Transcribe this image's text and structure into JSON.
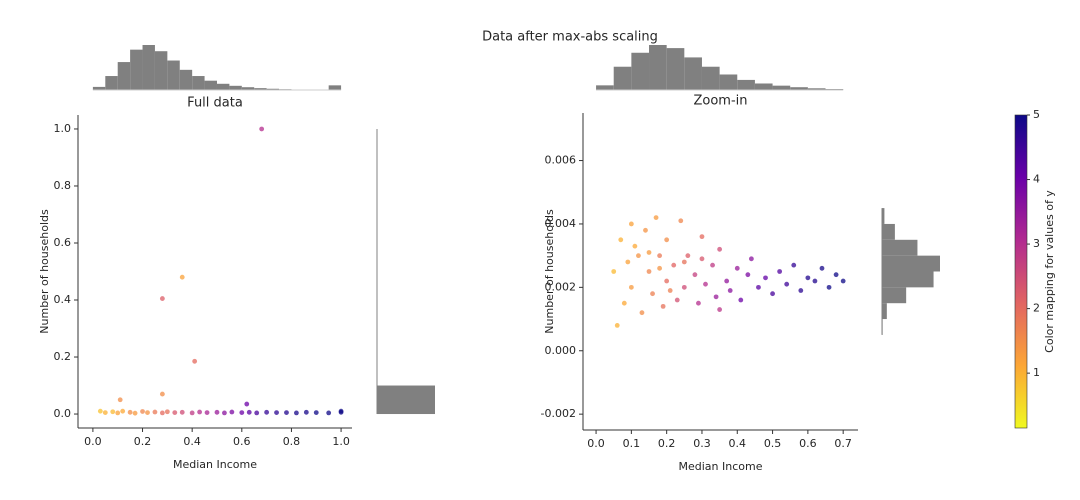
{
  "title": "Data after max-abs scaling",
  "chart_data": [
    {
      "type": "scatter",
      "title": "Full data",
      "x_label": "Median Income",
      "y_label": "Number of households",
      "xlim": [
        -0.06,
        1.044
      ],
      "ylim": [
        -0.049,
        1.049
      ],
      "xticks": [
        {
          "value": 0,
          "label": "0.0"
        },
        0.2,
        0.4,
        0.6,
        0.8,
        {
          "value": 1,
          "label": "1.0"
        }
      ],
      "yticks": [
        {
          "value": 0,
          "label": "0.0"
        },
        0.2,
        0.4,
        0.6,
        0.8,
        {
          "value": 1,
          "label": "1.0"
        }
      ],
      "x": [
        0.03,
        0.05,
        0.08,
        0.1,
        0.12,
        0.15,
        0.17,
        0.2,
        0.22,
        0.25,
        0.28,
        0.3,
        0.33,
        0.36,
        0.4,
        0.43,
        0.46,
        0.5,
        0.53,
        0.56,
        0.6,
        0.63,
        0.66,
        0.7,
        0.74,
        0.78,
        0.82,
        0.86,
        0.9,
        0.95,
        1.0,
        1.0,
        0.68,
        0.36,
        0.28,
        0.41,
        0.62,
        0.11,
        0.28
      ],
      "y": [
        0.01,
        0.005,
        0.008,
        0.004,
        0.01,
        0.006,
        0.003,
        0.009,
        0.005,
        0.007,
        0.004,
        0.008,
        0.005,
        0.006,
        0.004,
        0.007,
        0.005,
        0.006,
        0.004,
        0.007,
        0.005,
        0.006,
        0.004,
        0.006,
        0.005,
        0.005,
        0.004,
        0.006,
        0.005,
        0.004,
        0.006,
        0.01,
        1.0,
        0.48,
        0.405,
        0.185,
        0.035,
        0.05,
        0.07
      ],
      "c": [
        0.8,
        1.0,
        0.9,
        1.2,
        1.1,
        1.5,
        1.3,
        1.6,
        1.4,
        1.8,
        2.0,
        1.9,
        2.3,
        2.5,
        2.8,
        3.0,
        3.2,
        3.4,
        3.6,
        3.8,
        4.0,
        4.2,
        4.4,
        4.6,
        4.7,
        4.8,
        4.9,
        4.9,
        5.0,
        5.0,
        5.0,
        5.0,
        3.0,
        1.2,
        2.2,
        2.0,
        4.0,
        1.5,
        1.5
      ]
    },
    {
      "type": "histogram",
      "orientation": "vertical",
      "color": "#808080",
      "bins": [
        0,
        0.05,
        0.1,
        0.15,
        0.2,
        0.25,
        0.3,
        0.35,
        0.4,
        0.45,
        0.5,
        0.55,
        0.6,
        0.65,
        0.7,
        0.75,
        0.8,
        0.85,
        0.9,
        0.95,
        1.0
      ],
      "counts": [
        200,
        900,
        1800,
        2600,
        2900,
        2500,
        1900,
        1300,
        900,
        600,
        400,
        270,
        180,
        120,
        80,
        50,
        30,
        20,
        10,
        300
      ]
    },
    {
      "type": "histogram",
      "orientation": "horizontal",
      "color": "#808080",
      "bins": [
        0,
        0.1,
        0.2,
        0.3,
        0.4,
        0.5,
        0.6,
        0.7,
        0.8,
        0.9,
        1.0
      ],
      "counts": [
        20600,
        3,
        1,
        0,
        1,
        1,
        0,
        0,
        0,
        1
      ]
    },
    {
      "type": "scatter",
      "title": "Zoom-in",
      "x_label": "Median Income",
      "y_label": "Number of households",
      "xlim": [
        -0.037,
        0.742
      ],
      "ylim": [
        -0.0025,
        0.0075
      ],
      "xticks": [
        {
          "value": 0,
          "label": "0.0"
        },
        0.1,
        0.2,
        0.3,
        0.4,
        0.5,
        0.6,
        0.7
      ],
      "yticks": [
        -0.002,
        {
          "value": 0,
          "label": "0.000"
        },
        0.002,
        0.004,
        0.006
      ],
      "x": [
        0.05,
        0.07,
        0.08,
        0.1,
        0.1,
        0.12,
        0.13,
        0.14,
        0.15,
        0.16,
        0.17,
        0.18,
        0.19,
        0.2,
        0.2,
        0.22,
        0.23,
        0.24,
        0.25,
        0.26,
        0.28,
        0.29,
        0.3,
        0.31,
        0.33,
        0.34,
        0.35,
        0.37,
        0.38,
        0.4,
        0.41,
        0.43,
        0.44,
        0.46,
        0.48,
        0.5,
        0.52,
        0.54,
        0.56,
        0.58,
        0.6,
        0.62,
        0.64,
        0.66,
        0.68,
        0.7,
        0.06,
        0.09,
        0.11,
        0.15,
        0.18,
        0.21,
        0.25,
        0.3,
        0.35
      ],
      "y": [
        0.0025,
        0.0035,
        0.0015,
        0.004,
        0.002,
        0.003,
        0.0012,
        0.0038,
        0.0025,
        0.0018,
        0.0042,
        0.003,
        0.0014,
        0.0022,
        0.0035,
        0.0027,
        0.0016,
        0.0041,
        0.002,
        0.003,
        0.0024,
        0.0015,
        0.0036,
        0.0021,
        0.0027,
        0.0017,
        0.0032,
        0.0022,
        0.0019,
        0.0026,
        0.0016,
        0.0024,
        0.0029,
        0.002,
        0.0023,
        0.0018,
        0.0025,
        0.0021,
        0.0027,
        0.0019,
        0.0023,
        0.0022,
        0.0026,
        0.002,
        0.0024,
        0.0022,
        0.0008,
        0.0028,
        0.0033,
        0.0031,
        0.0026,
        0.0019,
        0.0028,
        0.0029,
        0.0013
      ],
      "c": [
        0.9,
        1.0,
        1.1,
        1.2,
        1.3,
        1.4,
        1.5,
        1.4,
        1.6,
        1.7,
        1.3,
        1.8,
        1.9,
        2.0,
        1.5,
        2.1,
        2.4,
        1.6,
        2.5,
        2.2,
        2.7,
        3.0,
        2.0,
        3.0,
        2.8,
        3.4,
        2.5,
        3.5,
        3.6,
        3.4,
        4.0,
        3.8,
        3.6,
        4.2,
        4.1,
        4.4,
        4.3,
        4.5,
        4.6,
        4.7,
        4.8,
        4.8,
        4.9,
        5.0,
        5.0,
        5.0,
        1.0,
        1.2,
        1.1,
        1.3,
        1.4,
        1.7,
        1.9,
        2.3,
        2.9
      ]
    },
    {
      "type": "histogram",
      "orientation": "vertical",
      "color": "#808080",
      "bins": [
        0,
        0.05,
        0.1,
        0.15,
        0.2,
        0.25,
        0.3,
        0.35,
        0.4,
        0.45,
        0.5,
        0.55,
        0.6,
        0.65,
        0.7
      ],
      "counts": [
        300,
        1500,
        2400,
        2900,
        2700,
        2100,
        1500,
        1000,
        650,
        420,
        280,
        180,
        110,
        60
      ]
    },
    {
      "type": "histogram",
      "orientation": "horizontal",
      "color": "#808080",
      "bins": [
        0.0005,
        0.001,
        0.0015,
        0.002,
        0.0025,
        0.003,
        0.0035,
        0.004,
        0.0045
      ],
      "counts": [
        40,
        300,
        1500,
        3200,
        3600,
        2200,
        800,
        150
      ]
    },
    {
      "type": "colorbar",
      "label": "Color mapping for values of y",
      "ylim": [
        0.15,
        5
      ],
      "yticks": [
        1,
        2,
        3,
        4,
        5
      ],
      "colors": [
        "#f0f921",
        "#fca636",
        "#e16462",
        "#b12a90",
        "#6a00a8",
        "#0d0887"
      ]
    }
  ]
}
